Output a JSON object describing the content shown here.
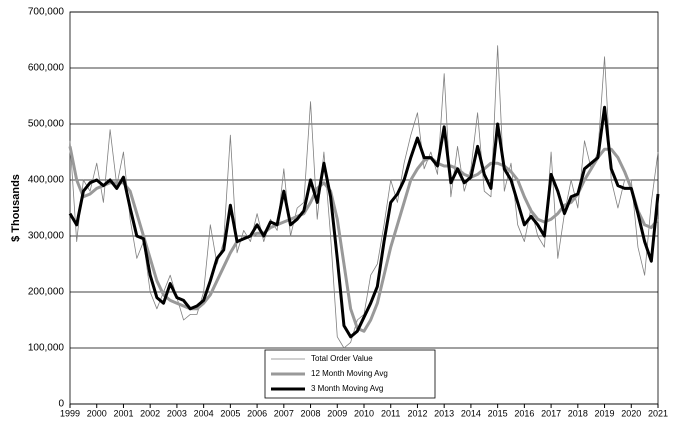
{
  "chart_data": {
    "type": "line",
    "ylabel": "$ Thousands",
    "x": [
      1999,
      1999.25,
      1999.5,
      1999.75,
      2000,
      2000.25,
      2000.5,
      2000.75,
      2001,
      2001.25,
      2001.5,
      2001.75,
      2002,
      2002.25,
      2002.5,
      2002.75,
      2003,
      2003.25,
      2003.5,
      2003.75,
      2004,
      2004.25,
      2004.5,
      2004.75,
      2005,
      2005.25,
      2005.5,
      2005.75,
      2006,
      2006.25,
      2006.5,
      2006.75,
      2007,
      2007.25,
      2007.5,
      2007.75,
      2008,
      2008.25,
      2008.5,
      2008.75,
      2009,
      2009.25,
      2009.5,
      2009.75,
      2010,
      2010.25,
      2010.5,
      2010.75,
      2011,
      2011.25,
      2011.5,
      2011.75,
      2012,
      2012.25,
      2012.5,
      2012.75,
      2013,
      2013.25,
      2013.5,
      2013.75,
      2014,
      2014.25,
      2014.5,
      2014.75,
      2015,
      2015.25,
      2015.5,
      2015.75,
      2016,
      2016.25,
      2016.5,
      2016.75,
      2017,
      2017.25,
      2017.5,
      2017.75,
      2018,
      2018.25,
      2018.5,
      2018.75,
      2019,
      2019.25,
      2019.5,
      2019.75,
      2020,
      2020.25,
      2020.5,
      2020.75,
      2021
    ],
    "series": [
      {
        "name": "Total Order Value",
        "color": "#808080",
        "values": [
          470000,
          290000,
          400000,
          380000,
          430000,
          360000,
          490000,
          390000,
          450000,
          330000,
          260000,
          290000,
          200000,
          170000,
          200000,
          230000,
          190000,
          150000,
          160000,
          160000,
          200000,
          320000,
          250000,
          290000,
          480000,
          270000,
          310000,
          290000,
          340000,
          290000,
          330000,
          310000,
          420000,
          300000,
          350000,
          360000,
          540000,
          330000,
          450000,
          300000,
          120000,
          100000,
          110000,
          150000,
          160000,
          230000,
          250000,
          320000,
          400000,
          360000,
          430000,
          480000,
          520000,
          420000,
          450000,
          410000,
          590000,
          370000,
          460000,
          380000,
          420000,
          520000,
          380000,
          370000,
          640000,
          380000,
          430000,
          320000,
          290000,
          350000,
          300000,
          280000,
          450000,
          260000,
          340000,
          400000,
          350000,
          470000,
          420000,
          450000,
          620000,
          400000,
          350000,
          400000,
          400000,
          280000,
          230000,
          360000,
          450000
        ]
      },
      {
        "name": "12 Month Moving Avg",
        "color": "#999999",
        "values": [
          460000,
          400000,
          370000,
          375000,
          385000,
          390000,
          395000,
          395000,
          395000,
          380000,
          340000,
          300000,
          260000,
          220000,
          195000,
          185000,
          180000,
          175000,
          170000,
          170000,
          180000,
          195000,
          220000,
          245000,
          270000,
          290000,
          295000,
          300000,
          305000,
          305000,
          315000,
          320000,
          325000,
          330000,
          335000,
          340000,
          360000,
          385000,
          395000,
          380000,
          330000,
          250000,
          170000,
          135000,
          130000,
          150000,
          180000,
          230000,
          280000,
          320000,
          360000,
          400000,
          420000,
          435000,
          440000,
          430000,
          425000,
          425000,
          420000,
          410000,
          405000,
          410000,
          420000,
          430000,
          430000,
          425000,
          415000,
          400000,
          370000,
          345000,
          330000,
          325000,
          330000,
          340000,
          355000,
          360000,
          375000,
          400000,
          420000,
          440000,
          455000,
          455000,
          440000,
          415000,
          385000,
          345000,
          320000,
          315000,
          330000
        ]
      },
      {
        "name": "3 Month Moving Avg",
        "color": "#000000",
        "values": [
          340000,
          320000,
          380000,
          395000,
          400000,
          390000,
          400000,
          385000,
          405000,
          350000,
          300000,
          295000,
          230000,
          190000,
          180000,
          215000,
          190000,
          185000,
          170000,
          175000,
          185000,
          220000,
          260000,
          275000,
          355000,
          290000,
          295000,
          300000,
          320000,
          300000,
          325000,
          320000,
          380000,
          320000,
          330000,
          345000,
          400000,
          360000,
          430000,
          370000,
          260000,
          140000,
          120000,
          130000,
          155000,
          180000,
          210000,
          290000,
          360000,
          375000,
          400000,
          440000,
          475000,
          440000,
          440000,
          425000,
          495000,
          395000,
          420000,
          395000,
          405000,
          460000,
          410000,
          385000,
          500000,
          420000,
          400000,
          360000,
          320000,
          335000,
          320000,
          300000,
          410000,
          380000,
          340000,
          370000,
          375000,
          420000,
          430000,
          440000,
          530000,
          420000,
          390000,
          385000,
          385000,
          340000,
          290000,
          255000,
          375000
        ]
      }
    ],
    "xlim": [
      1999,
      2021
    ],
    "xticks": [
      1999,
      2000,
      2001,
      2002,
      2003,
      2004,
      2005,
      2006,
      2007,
      2008,
      2009,
      2010,
      2011,
      2012,
      2013,
      2014,
      2015,
      2016,
      2017,
      2018,
      2019,
      2020,
      2021
    ],
    "ylim": [
      0,
      700000
    ],
    "yticks": [
      0,
      {
        "value": 100000,
        "label": "100,000"
      },
      {
        "value": 200000,
        "label": "200,000"
      },
      {
        "value": 300000,
        "label": "300,000"
      },
      {
        "value": 400000,
        "label": "400,000"
      },
      {
        "value": 500000,
        "label": "500,000"
      },
      {
        "value": 600000,
        "label": "600,000"
      },
      {
        "value": 700000,
        "label": "700,000"
      }
    ],
    "grid": true
  }
}
